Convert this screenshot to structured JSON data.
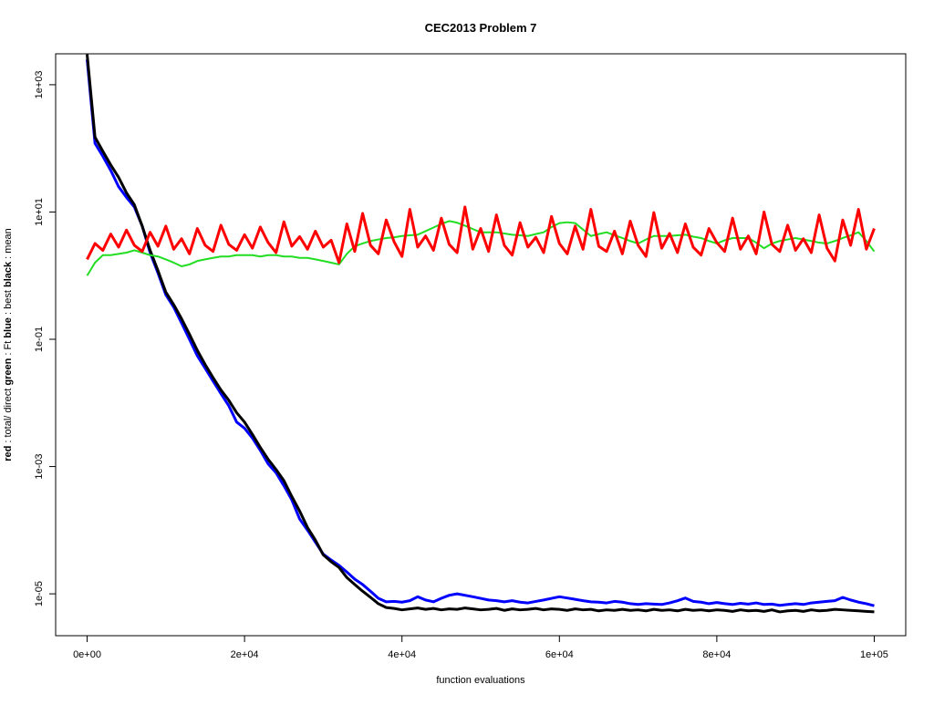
{
  "chart_data": {
    "type": "line",
    "title": "CEC2013 Problem  7",
    "xlabel": "function evaluations",
    "ylabel_parts": [
      {
        "text": "red",
        "bold": true
      },
      {
        "text": " : total/ direct ",
        "bold": false
      },
      {
        "text": "green",
        "bold": true
      },
      {
        "text": " : Ft ",
        "bold": false
      },
      {
        "text": "blue",
        "bold": true
      },
      {
        "text": " : best ",
        "bold": false
      },
      {
        "text": "black",
        "bold": true
      },
      {
        "text": " : mean",
        "bold": false
      }
    ],
    "log_y": true,
    "xlim": [
      -4000,
      104000
    ],
    "ylim": [
      2.2e-06,
      3060
    ],
    "xticks": [
      {
        "value": 0,
        "label": "0e+00"
      },
      {
        "value": 20000,
        "label": "2e+04"
      },
      {
        "value": 40000,
        "label": "4e+04"
      },
      {
        "value": 60000,
        "label": "6e+04"
      },
      {
        "value": 80000,
        "label": "8e+04"
      },
      {
        "value": 100000,
        "label": "1e+05"
      }
    ],
    "yticks": [
      {
        "value": 1e-05,
        "label": "1e-05"
      },
      {
        "value": 0.001,
        "label": "1e-03"
      },
      {
        "value": 0.1,
        "label": "1e-01"
      },
      {
        "value": 10,
        "label": "1e+01"
      },
      {
        "value": 1000,
        "label": "1e+03"
      }
    ],
    "x": [
      0,
      1000,
      2000,
      3000,
      4000,
      5000,
      6000,
      7000,
      8000,
      9000,
      10000,
      11000,
      12000,
      13000,
      14000,
      15000,
      16000,
      17000,
      18000,
      19000,
      20000,
      21000,
      22000,
      23000,
      24000,
      25000,
      26000,
      27000,
      28000,
      29000,
      30000,
      31000,
      32000,
      33000,
      34000,
      35000,
      36000,
      37000,
      38000,
      39000,
      40000,
      41000,
      42000,
      43000,
      44000,
      45000,
      46000,
      47000,
      48000,
      49000,
      50000,
      51000,
      52000,
      53000,
      54000,
      55000,
      56000,
      57000,
      58000,
      59000,
      60000,
      61000,
      62000,
      63000,
      64000,
      65000,
      66000,
      67000,
      68000,
      69000,
      70000,
      71000,
      72000,
      73000,
      74000,
      75000,
      76000,
      77000,
      78000,
      79000,
      80000,
      81000,
      82000,
      83000,
      84000,
      85000,
      86000,
      87000,
      88000,
      89000,
      90000,
      91000,
      92000,
      93000,
      94000,
      95000,
      96000,
      97000,
      98000,
      99000,
      100000
    ],
    "series": [
      {
        "name": "best",
        "color": "#0000ff",
        "line_width": 3,
        "values": [
          2500,
          120,
          75,
          45,
          25,
          17,
          12,
          6,
          2.3,
          1.1,
          0.5,
          0.32,
          0.18,
          0.1,
          0.055,
          0.035,
          0.022,
          0.014,
          0.009,
          0.005,
          0.004,
          0.0028,
          0.0018,
          0.0011,
          0.0008,
          0.0005,
          0.0003,
          0.00015,
          0.0001,
          6.5e-05,
          4.2e-05,
          3.4e-05,
          2.8e-05,
          2.2e-05,
          1.7e-05,
          1.4e-05,
          1.1e-05,
          8.5e-06,
          7.5e-06,
          7.6e-06,
          7.4e-06,
          7.8e-06,
          9e-06,
          8e-06,
          7.5e-06,
          8.5e-06,
          9.5e-06,
          1e-05,
          9.5e-06,
          9e-06,
          8.5e-06,
          8e-06,
          7.8e-06,
          7.5e-06,
          7.8e-06,
          7.4e-06,
          7.2e-06,
          7.6e-06,
          8e-06,
          8.5e-06,
          9e-06,
          8.6e-06,
          8.2e-06,
          7.8e-06,
          7.5e-06,
          7.4e-06,
          7.2e-06,
          7.6e-06,
          7.4e-06,
          7e-06,
          6.8e-06,
          7e-06,
          6.9e-06,
          6.8e-06,
          7.2e-06,
          7.8e-06,
          8.6e-06,
          7.6e-06,
          7.4e-06,
          7e-06,
          7.3e-06,
          7e-06,
          6.8e-06,
          7.1e-06,
          6.9e-06,
          7.2e-06,
          6.8e-06,
          6.9e-06,
          6.6e-06,
          6.8e-06,
          7e-06,
          6.8e-06,
          7.2e-06,
          7.4e-06,
          7.6e-06,
          7.8e-06,
          8.8e-06,
          8e-06,
          7.4e-06,
          7e-06,
          6.5e-06
        ]
      },
      {
        "name": "mean",
        "color": "#000000",
        "line_width": 3,
        "values": [
          3000,
          150,
          90,
          55,
          35,
          20,
          13,
          6,
          2.5,
          1.2,
          0.55,
          0.35,
          0.21,
          0.12,
          0.067,
          0.04,
          0.025,
          0.016,
          0.011,
          0.007,
          0.005,
          0.0032,
          0.002,
          0.0013,
          0.0009,
          0.0006,
          0.00034,
          0.0002,
          0.00011,
          7e-05,
          4.1e-05,
          3.2e-05,
          2.6e-05,
          1.8e-05,
          1.4e-05,
          1.1e-05,
          8.8e-06,
          7e-06,
          6.1e-06,
          5.9e-06,
          5.6e-06,
          5.8e-06,
          6e-06,
          5.7e-06,
          5.9e-06,
          5.6e-06,
          5.8e-06,
          5.7e-06,
          6e-06,
          5.8e-06,
          5.6e-06,
          5.7e-06,
          5.9e-06,
          5.5e-06,
          5.8e-06,
          5.6e-06,
          5.7e-06,
          5.9e-06,
          5.6e-06,
          5.8e-06,
          5.7e-06,
          5.5e-06,
          5.8e-06,
          5.6e-06,
          5.7e-06,
          5.4e-06,
          5.6e-06,
          5.5e-06,
          5.7e-06,
          5.5e-06,
          5.6e-06,
          5.4e-06,
          5.7e-06,
          5.5e-06,
          5.6e-06,
          5.4e-06,
          5.7e-06,
          5.5e-06,
          5.6e-06,
          5.4e-06,
          5.6e-06,
          5.5e-06,
          5.3e-06,
          5.6e-06,
          5.4e-06,
          5.5e-06,
          5.3e-06,
          5.6e-06,
          5.2e-06,
          5.4e-06,
          5.5e-06,
          5.3e-06,
          5.6e-06,
          5.4e-06,
          5.5e-06,
          5.7e-06,
          5.6e-06,
          5.5e-06,
          5.4e-06,
          5.3e-06,
          5.2e-06
        ]
      },
      {
        "name": "Ft",
        "color": "#22dd22",
        "line_width": 2,
        "values": [
          1.0,
          1.6,
          2.1,
          2.1,
          2.2,
          2.3,
          2.5,
          2.3,
          2.1,
          2.0,
          1.8,
          1.6,
          1.4,
          1.5,
          1.7,
          1.8,
          1.9,
          2.0,
          2.0,
          2.1,
          2.1,
          2.1,
          2.0,
          2.1,
          2.1,
          2.0,
          2.0,
          1.9,
          1.9,
          1.8,
          1.7,
          1.6,
          1.5,
          2.2,
          2.9,
          3.2,
          3.5,
          3.7,
          3.9,
          4.0,
          4.2,
          4.3,
          4.4,
          5.0,
          5.7,
          6.5,
          7.2,
          6.8,
          6.1,
          5.4,
          4.8,
          4.8,
          4.8,
          4.6,
          4.4,
          4.3,
          4.2,
          4.5,
          4.8,
          5.8,
          6.7,
          6.9,
          6.7,
          5.3,
          4.2,
          4.5,
          4.8,
          4.3,
          3.9,
          3.5,
          3.2,
          3.7,
          4.2,
          4.2,
          4.2,
          4.3,
          4.4,
          4.1,
          3.9,
          3.5,
          3.2,
          3.6,
          3.9,
          3.9,
          3.9,
          3.3,
          2.7,
          3.2,
          3.5,
          3.7,
          3.9,
          3.7,
          3.5,
          3.3,
          3.2,
          3.5,
          3.9,
          4.3,
          4.8,
          3.5,
          2.4
        ]
      },
      {
        "name": "total/ direct",
        "color": "#ff0000",
        "line_width": 3,
        "values": [
          1.8,
          3.2,
          2.5,
          4.5,
          2.8,
          5.2,
          3.0,
          2.4,
          4.8,
          2.9,
          6.0,
          2.6,
          3.8,
          2.2,
          5.5,
          3.0,
          2.4,
          6.2,
          3.1,
          2.5,
          4.4,
          2.7,
          5.8,
          3.3,
          2.3,
          7.0,
          2.9,
          4.1,
          2.6,
          5.0,
          2.8,
          3.6,
          1.6,
          6.5,
          2.4,
          9.5,
          3.0,
          2.2,
          7.5,
          3.4,
          2.0,
          11,
          2.8,
          4.2,
          2.5,
          8.0,
          3.1,
          2.3,
          12,
          2.6,
          5.5,
          2.4,
          9.0,
          3.0,
          2.1,
          6.8,
          2.8,
          4.0,
          2.3,
          8.5,
          3.2,
          2.2,
          6.0,
          2.6,
          11,
          2.9,
          2.4,
          5.0,
          2.2,
          7.2,
          3.0,
          2.0,
          9.8,
          2.7,
          4.6,
          2.3,
          6.5,
          2.8,
          2.1,
          5.5,
          3.3,
          2.4,
          8.0,
          2.6,
          4.2,
          2.2,
          10,
          3.1,
          2.4,
          6.2,
          2.5,
          3.8,
          2.3,
          9.0,
          2.7,
          1.7,
          7.5,
          3.0,
          11,
          2.6,
          5.5
        ]
      }
    ]
  }
}
